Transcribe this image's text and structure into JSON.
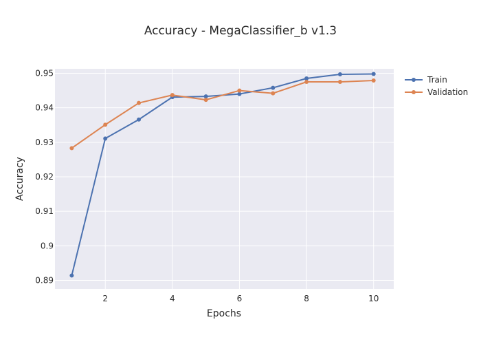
{
  "chart_data": {
    "type": "line",
    "title": "Accuracy - MegaClassifier_b v1.3",
    "xlabel": "Epochs",
    "ylabel": "Accuracy",
    "x": [
      1,
      2,
      3,
      4,
      5,
      6,
      7,
      8,
      9,
      10
    ],
    "xlim": [
      0.5,
      10.6
    ],
    "ylim": [
      0.8875,
      0.9513
    ],
    "xticks": [
      2,
      4,
      6,
      8,
      10
    ],
    "yticks": [
      0.89,
      0.9,
      0.91,
      0.92,
      0.93,
      0.94,
      0.95
    ],
    "ytick_labels": [
      "0.89",
      "0.9",
      "0.91",
      "0.92",
      "0.93",
      "0.94",
      "0.95"
    ],
    "grid": true,
    "legend_position": "top-right",
    "series": [
      {
        "name": "Train",
        "color": "#4c72b0",
        "values": [
          0.8914,
          0.9311,
          0.9366,
          0.9431,
          0.9433,
          0.944,
          0.9458,
          0.9485,
          0.9497,
          0.9498
        ]
      },
      {
        "name": "Validation",
        "color": "#dd8452",
        "values": [
          0.9283,
          0.9351,
          0.9414,
          0.9437,
          0.9423,
          0.945,
          0.9442,
          0.9475,
          0.9475,
          0.9479
        ]
      }
    ]
  }
}
